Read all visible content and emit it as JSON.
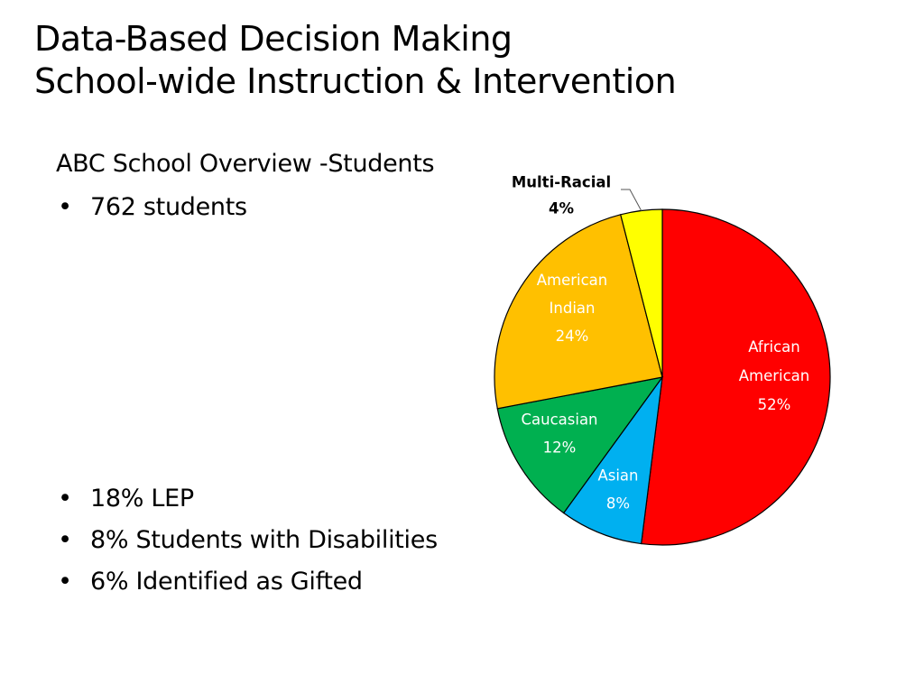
{
  "title": {
    "line1": "Data-Based Decision Making",
    "line2": "School-wide Instruction & Intervention"
  },
  "overview": {
    "heading": "ABC School Overview -Students",
    "top_bullets": [
      "762 students"
    ],
    "bottom_bullets": [
      "18% LEP",
      "8% Students with Disabilities",
      "6% Identified as Gifted"
    ],
    "bullet_glyph": "•"
  },
  "chart_data": {
    "type": "pie",
    "title": "",
    "slices": [
      {
        "name": "African American",
        "label_lines": [
          "African",
          "American"
        ],
        "value": 52,
        "value_label": "52%",
        "color": "#ff0000",
        "label_color": "#ffffff"
      },
      {
        "name": "Asian",
        "label_lines": [
          "Asian"
        ],
        "value": 8,
        "value_label": "8%",
        "color": "#00b0f0",
        "label_color": "#ffffff"
      },
      {
        "name": "Caucasian",
        "label_lines": [
          "Caucasian"
        ],
        "value": 12,
        "value_label": "12%",
        "color": "#00b050",
        "label_color": "#ffffff"
      },
      {
        "name": "American Indian",
        "label_lines": [
          "American",
          "Indian"
        ],
        "value": 24,
        "value_label": "24%",
        "color": "#ffc000",
        "label_color": "#ffffff"
      },
      {
        "name": "Multi-Racial",
        "label_lines": [
          "Multi-Racial"
        ],
        "value": 4,
        "value_label": "4%",
        "color": "#ffff00",
        "label_color": "#000000"
      }
    ],
    "start_angle": "12 o'clock",
    "direction": "clockwise",
    "legend": "none"
  }
}
